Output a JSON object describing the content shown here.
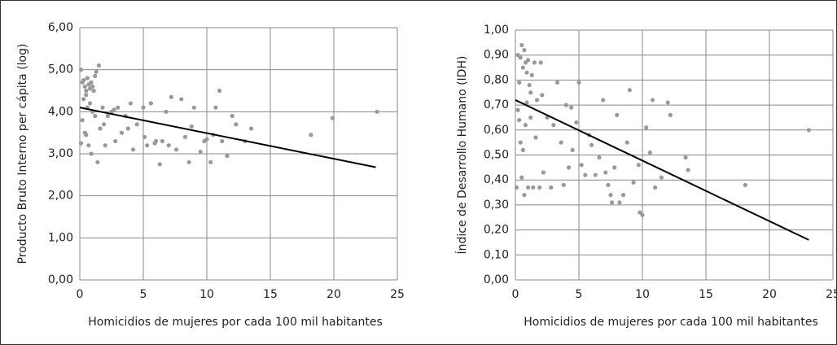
{
  "chart_data": [
    {
      "type": "scatter",
      "y_label": "Producto Bruto Interno per cápita (log)",
      "x_label": "Homicidios de mujeres por cada 100 mil habitantes",
      "color": "#999999",
      "x": [
        0.1,
        0.2,
        0.3,
        0.4,
        0.5,
        0.5,
        0.6,
        0.7,
        0.8,
        0.9,
        1.0,
        1.1,
        1.2,
        1.3,
        1.5,
        0.3,
        0.6,
        0.8,
        1.0,
        1.2,
        0.2,
        0.4,
        0.5,
        0.7,
        0.9,
        0.1,
        1.4,
        1.6,
        1.8,
        2.0,
        2.2,
        2.5,
        2.8,
        3.0,
        3.3,
        3.6,
        4.0,
        4.2,
        4.5,
        5.0,
        5.1,
        5.3,
        5.6,
        5.9,
        6.3,
        6.5,
        6.8,
        7.0,
        7.2,
        7.6,
        8.0,
        8.3,
        8.6,
        8.8,
        9.0,
        9.5,
        10.0,
        10.3,
        10.5,
        10.7,
        11.0,
        11.2,
        11.6,
        12.0,
        12.3,
        13.0,
        13.5,
        18.2,
        19.9,
        23.4,
        3.8,
        6.0,
        9.8,
        2.7,
        1.9
      ],
      "y": [
        5.0,
        4.7,
        4.75,
        4.6,
        4.5,
        4.4,
        4.8,
        4.65,
        4.55,
        4.7,
        4.6,
        4.5,
        4.85,
        4.95,
        5.1,
        4.3,
        4.1,
        4.2,
        4.0,
        3.9,
        3.8,
        3.5,
        3.45,
        3.2,
        3.0,
        3.25,
        2.8,
        3.6,
        4.1,
        3.2,
        3.9,
        4.0,
        3.3,
        4.1,
        3.5,
        3.9,
        4.2,
        3.1,
        3.7,
        4.1,
        3.4,
        3.2,
        4.2,
        3.25,
        2.75,
        3.3,
        4.0,
        3.2,
        4.35,
        3.1,
        4.3,
        3.4,
        2.8,
        3.65,
        4.1,
        3.05,
        3.35,
        2.8,
        3.45,
        4.1,
        4.5,
        3.3,
        2.95,
        3.9,
        3.7,
        3.3,
        3.6,
        3.45,
        3.85,
        4.0,
        3.6,
        3.3,
        3.3,
        4.05,
        3.7
      ],
      "trendline": {
        "x": [
          0,
          23.3
        ],
        "y": [
          4.1,
          2.68
        ],
        "color": "#000000"
      },
      "xlim": [
        0,
        25
      ],
      "xticks": [
        0,
        5,
        10,
        15,
        20,
        25
      ],
      "ylim": [
        0,
        6
      ],
      "yticks": [
        {
          "value": 0,
          "label": "0,00"
        },
        {
          "value": 1,
          "label": "1,00"
        },
        {
          "value": 2,
          "label": "2,00"
        },
        {
          "value": 3,
          "label": "3,00"
        },
        {
          "value": 4,
          "label": "4,00"
        },
        {
          "value": 5,
          "label": "5,00"
        },
        {
          "value": 6,
          "label": "6,00"
        }
      ],
      "grid": true
    },
    {
      "type": "scatter",
      "y_label": "Índice de Desarrollo Humano (IDH)",
      "x_label": "Homicidios de mujeres por cada 100 mil habitantes",
      "color": "#999999",
      "x": [
        0.1,
        0.2,
        0.3,
        0.4,
        0.5,
        0.6,
        0.7,
        0.8,
        0.9,
        1.0,
        1.1,
        1.2,
        1.3,
        1.5,
        1.7,
        2.0,
        0.2,
        0.3,
        0.4,
        0.5,
        0.6,
        0.7,
        0.8,
        1.0,
        1.2,
        1.4,
        1.6,
        1.9,
        2.2,
        2.5,
        2.8,
        3.0,
        3.3,
        3.6,
        3.8,
        4.0,
        4.2,
        4.5,
        4.8,
        5.0,
        5.2,
        5.5,
        5.8,
        6.0,
        6.3,
        6.6,
        6.9,
        7.1,
        7.3,
        7.5,
        7.8,
        8.0,
        8.2,
        8.5,
        8.8,
        9.0,
        9.3,
        9.7,
        9.8,
        10.0,
        10.3,
        10.6,
        10.8,
        11.0,
        11.5,
        12.0,
        12.2,
        13.4,
        13.6,
        18.1,
        23.1,
        7.6,
        2.1,
        0.9,
        4.4
      ],
      "y": [
        0.37,
        0.9,
        0.79,
        0.89,
        0.94,
        0.85,
        0.92,
        0.87,
        0.83,
        0.88,
        0.78,
        0.75,
        0.82,
        0.87,
        0.72,
        0.87,
        0.68,
        0.64,
        0.55,
        0.41,
        0.52,
        0.34,
        0.62,
        0.37,
        0.65,
        0.37,
        0.57,
        0.37,
        0.43,
        0.65,
        0.37,
        0.62,
        0.79,
        0.55,
        0.38,
        0.7,
        0.45,
        0.52,
        0.63,
        0.79,
        0.46,
        0.42,
        0.58,
        0.54,
        0.42,
        0.49,
        0.72,
        0.43,
        0.38,
        0.34,
        0.45,
        0.66,
        0.31,
        0.34,
        0.55,
        0.76,
        0.39,
        0.46,
        0.27,
        0.26,
        0.61,
        0.51,
        0.72,
        0.37,
        0.41,
        0.71,
        0.66,
        0.49,
        0.44,
        0.38,
        0.6,
        0.31,
        0.74,
        0.71,
        0.69
      ],
      "trendline": {
        "x": [
          0,
          23.1
        ],
        "y": [
          0.72,
          0.16
        ],
        "color": "#000000"
      },
      "xlim": [
        0,
        25
      ],
      "xticks": [
        0,
        5,
        10,
        15,
        20,
        25
      ],
      "ylim": [
        0,
        1
      ],
      "yticks": [
        {
          "value": 0,
          "label": "0,00"
        },
        {
          "value": 0.1,
          "label": "0,10"
        },
        {
          "value": 0.2,
          "label": "0,20"
        },
        {
          "value": 0.3,
          "label": "0,30"
        },
        {
          "value": 0.4,
          "label": "0,40"
        },
        {
          "value": 0.5,
          "label": "0,50"
        },
        {
          "value": 0.6,
          "label": "0,60"
        },
        {
          "value": 0.7,
          "label": "0,70"
        },
        {
          "value": 0.8,
          "label": "0,80"
        },
        {
          "value": 0.9,
          "label": "0,90"
        },
        {
          "value": 1,
          "label": "1,00"
        }
      ],
      "grid": true
    }
  ]
}
